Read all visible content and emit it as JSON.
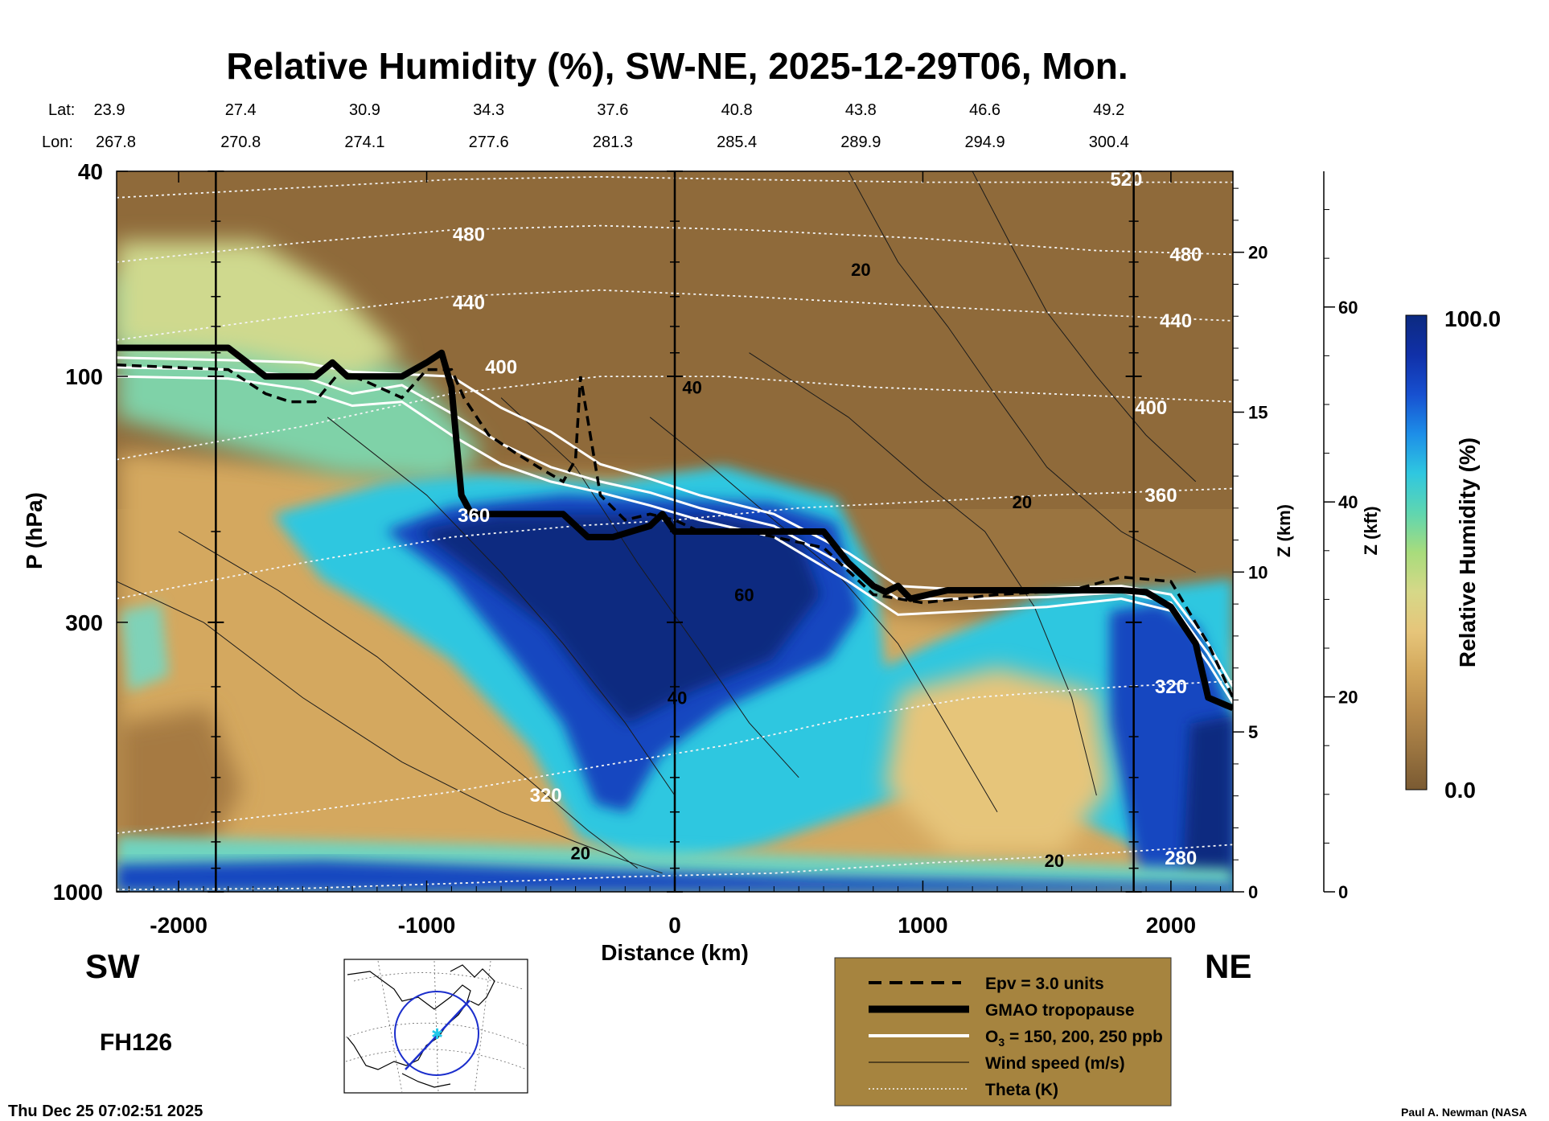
{
  "chart_data": {
    "type": "heatmap",
    "title": "Relative Humidity (%), SW-NE, 2025-12-29T06, Mon.",
    "xlabel": "Distance (km)",
    "ylabel": "P (hPa)",
    "z_km_label": "Z (km)",
    "z_kft_label": "Z (kft)",
    "xlim": [
      -2250,
      2250
    ],
    "x_ticks": [
      -2000,
      -1000,
      0,
      1000,
      2000
    ],
    "x_tick_labels": [
      "-2000",
      "-1000",
      "0",
      "1000",
      "2000"
    ],
    "ylim": [
      1000,
      40
    ],
    "y_scale": "log",
    "y_ticks": [
      40,
      100,
      300,
      1000
    ],
    "y_tick_labels": [
      "40",
      "100",
      "300",
      "1000"
    ],
    "z_km_ticks": [
      0,
      5,
      10,
      15,
      20
    ],
    "z_km_tick_labels": [
      "0",
      "5",
      "10",
      "15",
      "20"
    ],
    "z_kft_ticks": [
      0,
      20,
      40,
      60
    ],
    "z_kft_tick_labels": [
      "0",
      "20",
      "40",
      "60"
    ],
    "location_rows": {
      "lat_label": "Lat:",
      "lon_label": "Lon:",
      "x": [
        -2250,
        -1750,
        -1250,
        -750,
        -250,
        250,
        750,
        1250,
        1750
      ],
      "lat": [
        "23.9",
        "27.4",
        "30.9",
        "34.3",
        "37.6",
        "40.8",
        "43.8",
        "46.6",
        "49.2"
      ],
      "lon": [
        "267.8",
        "270.8",
        "274.1",
        "277.6",
        "281.3",
        "285.4",
        "289.9",
        "294.9",
        "300.4"
      ]
    },
    "vertical_lines_x": [
      -1850,
      0,
      1850
    ],
    "direction_left": "SW",
    "direction_right": "NE",
    "colorbar": {
      "label": "Relative Humidity (%)",
      "min_label": "0.0",
      "max_label": "100.0",
      "colors": [
        "#7a5a32",
        "#9a7440",
        "#b98c4c",
        "#d3a85c",
        "#e6c57a",
        "#d6d888",
        "#a8dc7c",
        "#5fd6b0",
        "#2fc7e0",
        "#1d8ee8",
        "#1750d0",
        "#1030a8",
        "#0c2a80"
      ]
    },
    "theta_contours": [
      {
        "label": "280",
        "x": [
          -2250,
          -1500,
          -800,
          -200,
          400,
          1000,
          1600,
          2250
        ],
        "p": [
          990,
          985,
          960,
          935,
          920,
          880,
          850,
          810
        ]
      },
      {
        "label": "320",
        "x": [
          -2250,
          -1500,
          -900,
          -300,
          200,
          700,
          1200,
          1800,
          2250
        ],
        "p": [
          770,
          700,
          640,
          570,
          520,
          460,
          420,
          400,
          390
        ]
      },
      {
        "label": "360",
        "x": [
          -2250,
          -1500,
          -900,
          -400,
          0,
          500,
          1000,
          1500,
          2250
        ],
        "p": [
          270,
          230,
          205,
          195,
          190,
          180,
          175,
          170,
          165
        ]
      },
      {
        "label": "400",
        "x": [
          -2250,
          -1500,
          -900,
          -300,
          200,
          800,
          1500,
          2250
        ],
        "p": [
          145,
          125,
          108,
          100,
          100,
          105,
          108,
          112
        ]
      },
      {
        "label": "440",
        "x": [
          -2250,
          -1500,
          -900,
          -300,
          300,
          1000,
          1700,
          2250
        ],
        "p": [
          85,
          76,
          70,
          68,
          70,
          73,
          76,
          78
        ]
      },
      {
        "label": "480",
        "x": [
          -2250,
          -1500,
          -900,
          -300,
          300,
          1000,
          1700,
          2250
        ],
        "p": [
          60,
          55,
          52,
          51,
          52,
          54,
          57,
          58
        ]
      },
      {
        "label": "520",
        "x": [
          -2250,
          -1500,
          -900,
          -300,
          300,
          1000,
          1700,
          2250
        ],
        "p": [
          45,
          43,
          41.5,
          41,
          41.5,
          42,
          42,
          42
        ]
      }
    ],
    "theta_label_positions": [
      {
        "label": "480",
        "x": -830,
        "p": 53
      },
      {
        "label": "440",
        "x": -830,
        "p": 72
      },
      {
        "label": "400",
        "x": -700,
        "p": 96
      },
      {
        "label": "360",
        "x": -810,
        "p": 186
      },
      {
        "label": "320",
        "x": -520,
        "p": 650
      },
      {
        "label": "280",
        "x": 2040,
        "p": 860
      },
      {
        "label": "520",
        "x": 1820,
        "p": 41.5
      },
      {
        "label": "480",
        "x": 2060,
        "p": 58
      },
      {
        "label": "440",
        "x": 2020,
        "p": 78
      },
      {
        "label": "400",
        "x": 1920,
        "p": 115
      },
      {
        "label": "360",
        "x": 1960,
        "p": 170
      },
      {
        "label": "320",
        "x": 2000,
        "p": 400
      }
    ],
    "wind_contour_labels": [
      {
        "label": "20",
        "x": 750,
        "p": 62
      },
      {
        "label": "40",
        "x": 70,
        "p": 105
      },
      {
        "label": "20",
        "x": 1400,
        "p": 175
      },
      {
        "label": "60",
        "x": 280,
        "p": 265
      },
      {
        "label": "40",
        "x": 10,
        "p": 420
      },
      {
        "label": "20",
        "x": -380,
        "p": 840
      },
      {
        "label": "20",
        "x": 1530,
        "p": 870
      }
    ],
    "tropopause_gmao": {
      "x": [
        -2250,
        -1800,
        -1650,
        -1550,
        -1450,
        -1380,
        -1320,
        -1200,
        -1100,
        -1000,
        -940,
        -900,
        -860,
        -820,
        -780,
        -720,
        -600,
        -450,
        -350,
        -250,
        -100,
        -50,
        0,
        300,
        600,
        700,
        800,
        850,
        900,
        950,
        1100,
        1300,
        1500,
        1800,
        1900,
        2000,
        2100,
        2150,
        2250
      ],
      "p": [
        88,
        88,
        100,
        100,
        100,
        94,
        100,
        100,
        100,
        94,
        90,
        105,
        170,
        185,
        185,
        185,
        185,
        185,
        205,
        205,
        195,
        185,
        200,
        200,
        200,
        230,
        255,
        262,
        255,
        270,
        260,
        260,
        260,
        260,
        262,
        280,
        330,
        420,
        440
      ]
    },
    "epv_line": {
      "x": [
        -2250,
        -1800,
        -1650,
        -1550,
        -1450,
        -1350,
        -1250,
        -1100,
        -1000,
        -900,
        -850,
        -750,
        -650,
        -550,
        -450,
        -400,
        -380,
        -300,
        -200,
        -100,
        0,
        100,
        300,
        600,
        800,
        1000,
        1300,
        1600,
        1800,
        2000,
        2150,
        2250
      ],
      "p": [
        95,
        97,
        108,
        112,
        112,
        98,
        102,
        110,
        97,
        97,
        110,
        130,
        140,
        150,
        160,
        145,
        100,
        170,
        190,
        185,
        190,
        200,
        200,
        215,
        265,
        275,
        265,
        260,
        245,
        250,
        330,
        420
      ]
    },
    "ozone_lines": [
      {
        "label": "150",
        "x": [
          -2250,
          -1800,
          -1500,
          -1300,
          -1100,
          -900,
          -700,
          -500,
          -300,
          -100,
          100,
          400,
          700,
          900,
          1200,
          1500,
          1800,
          2000,
          2150,
          2250
        ],
        "p": [
          92,
          93,
          94,
          98,
          99,
          100,
          115,
          128,
          148,
          158,
          170,
          185,
          220,
          255,
          260,
          258,
          255,
          265,
          330,
          400
        ]
      },
      {
        "label": "200",
        "x": [
          -2250,
          -1800,
          -1500,
          -1300,
          -1100,
          -900,
          -700,
          -500,
          -300,
          -100,
          100,
          400,
          700,
          900,
          1200,
          1500,
          1800,
          2000,
          2150,
          2250
        ],
        "p": [
          96,
          97,
          100,
          108,
          104,
          118,
          135,
          150,
          160,
          168,
          180,
          195,
          235,
          270,
          270,
          268,
          262,
          275,
          345,
          415
        ]
      },
      {
        "label": "250",
        "x": [
          -2250,
          -1800,
          -1500,
          -1300,
          -1100,
          -900,
          -700,
          -500,
          -300,
          -100,
          100,
          400,
          700,
          900,
          1200,
          1500,
          1800,
          2000,
          2150,
          2250
        ],
        "p": [
          100,
          101,
          106,
          114,
          112,
          130,
          148,
          160,
          168,
          178,
          190,
          205,
          250,
          290,
          285,
          280,
          270,
          285,
          360,
          430
        ]
      }
    ],
    "wind_contours": [
      {
        "x": [
          -2250,
          -1900,
          -1500,
          -1100,
          -700,
          -400,
          -200,
          -50
        ],
        "p": [
          250,
          300,
          420,
          560,
          700,
          800,
          870,
          920
        ]
      },
      {
        "x": [
          -2000,
          -1600,
          -1200,
          -900,
          -600,
          -350,
          -150
        ],
        "p": [
          200,
          260,
          350,
          460,
          600,
          760,
          900
        ]
      },
      {
        "x": [
          -1400,
          -1000,
          -700,
          -450,
          -200,
          0
        ],
        "p": [
          120,
          170,
          240,
          330,
          470,
          650
        ]
      },
      {
        "x": [
          -700,
          -400,
          -150,
          100,
          300,
          500
        ],
        "p": [
          110,
          150,
          230,
          340,
          470,
          600
        ]
      },
      {
        "x": [
          -100,
          150,
          400,
          650,
          900,
          1100,
          1300
        ],
        "p": [
          120,
          150,
          190,
          240,
          330,
          480,
          700
        ]
      },
      {
        "x": [
          300,
          700,
          1000,
          1250,
          1450,
          1600,
          1700
        ],
        "p": [
          90,
          120,
          160,
          200,
          280,
          420,
          650
        ]
      },
      {
        "x": [
          700,
          900,
          1100,
          1300,
          1500,
          1800,
          2100
        ],
        "p": [
          40,
          60,
          80,
          110,
          150,
          200,
          240
        ]
      },
      {
        "x": [
          1200,
          1350,
          1500,
          1700,
          1900,
          2100
        ],
        "p": [
          40,
          55,
          75,
          100,
          130,
          160
        ]
      }
    ],
    "legend": [
      {
        "label": "Epv = 3.0 units",
        "style": "dashed"
      },
      {
        "label": "GMAO tropopause",
        "style": "thick"
      },
      {
        "label_main": "O",
        "label_sub": "3",
        "label_rest": " = 150, 200, 250 ppb",
        "style": "white"
      },
      {
        "label": "Wind speed (m/s)",
        "style": "thin"
      },
      {
        "label": "Theta (K)",
        "style": "dotted"
      }
    ],
    "legend_bg": "#a6843f",
    "forecast_hour": "FH126",
    "timestamp": "Thu Dec 25 07:02:51 2025",
    "credit": "Paul A. Newman (NASA"
  }
}
